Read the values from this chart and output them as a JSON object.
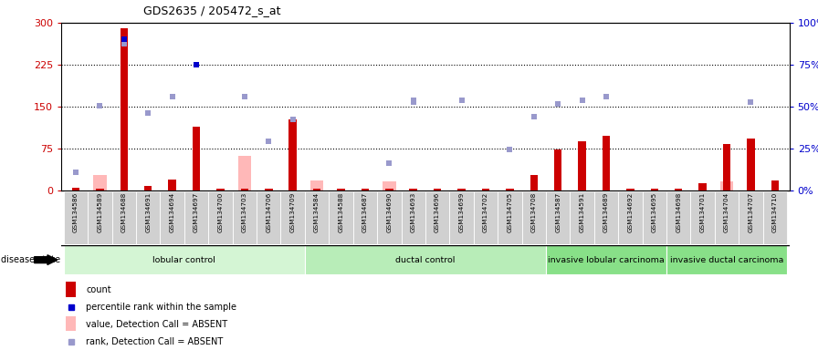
{
  "title": "GDS2635 / 205472_s_at",
  "samples": [
    "GSM134586",
    "GSM134589",
    "GSM134688",
    "GSM134691",
    "GSM134694",
    "GSM134697",
    "GSM134700",
    "GSM134703",
    "GSM134706",
    "GSM134709",
    "GSM134584",
    "GSM134588",
    "GSM134687",
    "GSM134690",
    "GSM134693",
    "GSM134696",
    "GSM134699",
    "GSM134702",
    "GSM134705",
    "GSM134708",
    "GSM134587",
    "GSM134591",
    "GSM134689",
    "GSM134692",
    "GSM134695",
    "GSM134698",
    "GSM134701",
    "GSM134704",
    "GSM134707",
    "GSM134710"
  ],
  "groups": [
    {
      "label": "lobular control",
      "start": 0,
      "end": 10,
      "color": "#d4f5d4"
    },
    {
      "label": "ductal control",
      "start": 10,
      "end": 20,
      "color": "#b8edb8"
    },
    {
      "label": "invasive lobular carcinoma",
      "start": 20,
      "end": 25,
      "color": "#88e088"
    },
    {
      "label": "invasive ductal carcinoma",
      "start": 25,
      "end": 30,
      "color": "#88e088"
    }
  ],
  "count_present": [
    5,
    4,
    290,
    8,
    20,
    115,
    4,
    4,
    4,
    128,
    4,
    4,
    4,
    4,
    4,
    4,
    4,
    4,
    4,
    28,
    73,
    88,
    98,
    4,
    4,
    4,
    14,
    83,
    93,
    18
  ],
  "count_absent": [
    null,
    28,
    null,
    null,
    null,
    null,
    null,
    62,
    null,
    null,
    18,
    null,
    null,
    16,
    null,
    null,
    null,
    null,
    null,
    null,
    null,
    null,
    null,
    null,
    null,
    null,
    null,
    16,
    null,
    null
  ],
  "percentile_present": [
    null,
    null,
    270,
    null,
    null,
    225,
    null,
    null,
    null,
    null,
    null,
    null,
    null,
    null,
    null,
    null,
    null,
    null,
    null,
    null,
    null,
    null,
    null,
    null,
    null,
    null,
    null,
    null,
    null,
    null
  ],
  "rank_present": [
    null,
    152,
    263,
    138,
    null,
    null,
    null,
    null,
    88,
    128,
    null,
    null,
    null,
    50,
    158,
    null,
    162,
    null,
    73,
    132,
    null,
    null,
    null,
    null,
    null,
    null,
    null,
    null,
    158,
    null
  ],
  "rank_absent": [
    33,
    null,
    null,
    null,
    168,
    null,
    null,
    168,
    null,
    null,
    null,
    null,
    null,
    50,
    162,
    null,
    null,
    null,
    null,
    null,
    155,
    162,
    168,
    null,
    null,
    null,
    null,
    null,
    null,
    null
  ],
  "ylim_left": [
    0,
    300
  ],
  "yticks_left": [
    0,
    75,
    150,
    225,
    300
  ],
  "ytick_labels_left": [
    "0",
    "75",
    "150",
    "225",
    "300"
  ],
  "ytick_labels_right": [
    "0%",
    "25%",
    "50%",
    "75%",
    "100%"
  ],
  "hline_y": [
    75,
    150,
    225
  ],
  "bar_color_present": "#cc0000",
  "bar_color_absent": "#ffb8b8",
  "dot_color_present": "#0000cc",
  "dot_color_absent": "#9999cc",
  "disease_state_label": "disease state"
}
